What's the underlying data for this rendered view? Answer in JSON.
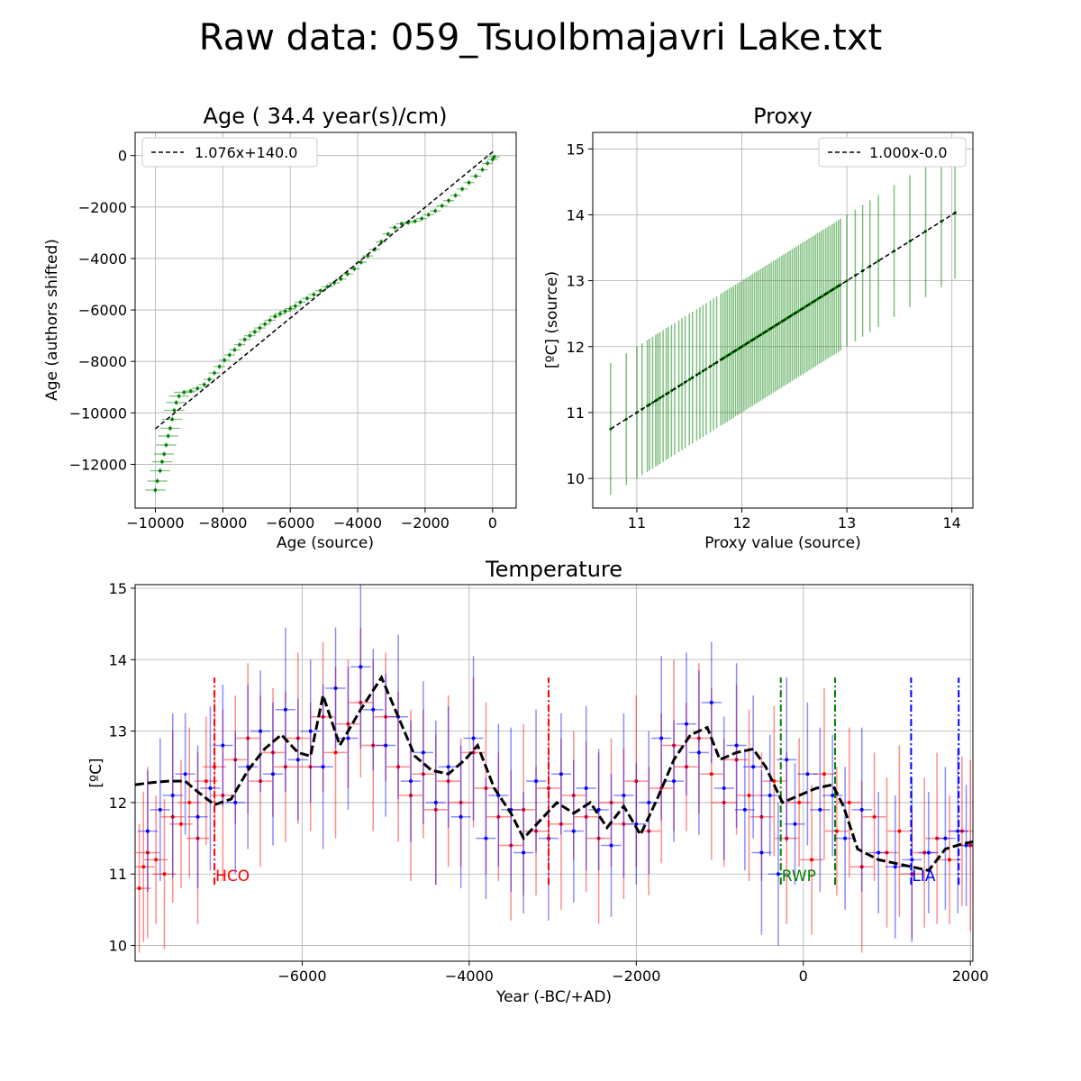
{
  "figure_title": "Raw data: 059_Tsuolbmajavri Lake.txt",
  "colors": {
    "green": "#008000",
    "red": "#ff0000",
    "blue": "#0000ff",
    "black": "#000000"
  },
  "chart_data": [
    {
      "id": "age",
      "type": "scatter",
      "title": "Age ( 34.4 year(s)/cm)",
      "xlabel": "Age (source)",
      "ylabel": "Age (authors shifted)",
      "xlim": [
        -10600,
        700
      ],
      "ylim": [
        -13700,
        900
      ],
      "xticks": [
        -10000,
        -8000,
        -6000,
        -4000,
        -2000,
        0
      ],
      "xtick_labels": [
        "−10000",
        "−8000",
        "−6000",
        "−4000",
        "−2000",
        "0"
      ],
      "yticks": [
        0,
        -2000,
        -4000,
        -6000,
        -8000,
        -10000,
        -12000
      ],
      "ytick_labels": [
        "0",
        "−2000",
        "−4000",
        "−6000",
        "−8000",
        "−10000",
        "−12000"
      ],
      "grid": true,
      "legend_position": "top-left",
      "fit": {
        "label": "1.076x+140.0",
        "slope": 1.076,
        "intercept": 140.0,
        "x_range": [
          -10000,
          50
        ]
      },
      "series_points": [
        [
          -10000,
          -13000
        ],
        [
          -9940,
          -12650
        ],
        [
          -9860,
          -12250
        ],
        [
          -9800,
          -11900
        ],
        [
          -9740,
          -11600
        ],
        [
          -9680,
          -11250
        ],
        [
          -9620,
          -10900
        ],
        [
          -9560,
          -10600
        ],
        [
          -9500,
          -10250
        ],
        [
          -9440,
          -9900
        ],
        [
          -9380,
          -9600
        ],
        [
          -9300,
          -9350
        ],
        [
          -9150,
          -9200
        ],
        [
          -8950,
          -9150
        ],
        [
          -8750,
          -9050
        ],
        [
          -8550,
          -8900
        ],
        [
          -8400,
          -8700
        ],
        [
          -8250,
          -8450
        ],
        [
          -8100,
          -8200
        ],
        [
          -7950,
          -7950
        ],
        [
          -7800,
          -7750
        ],
        [
          -7650,
          -7550
        ],
        [
          -7500,
          -7350
        ],
        [
          -7350,
          -7150
        ],
        [
          -7200,
          -7000
        ],
        [
          -7050,
          -6850
        ],
        [
          -6900,
          -6700
        ],
        [
          -6750,
          -6550
        ],
        [
          -6600,
          -6400
        ],
        [
          -6450,
          -6250
        ],
        [
          -6300,
          -6150
        ],
        [
          -6150,
          -6050
        ],
        [
          -6000,
          -5950
        ],
        [
          -5850,
          -5850
        ],
        [
          -5700,
          -5700
        ],
        [
          -5500,
          -5550
        ],
        [
          -5300,
          -5400
        ],
        [
          -5100,
          -5250
        ],
        [
          -4900,
          -5100
        ],
        [
          -4700,
          -4950
        ],
        [
          -4500,
          -4800
        ],
        [
          -4300,
          -4600
        ],
        [
          -4100,
          -4400
        ],
        [
          -3900,
          -4150
        ],
        [
          -3700,
          -3900
        ],
        [
          -3500,
          -3650
        ],
        [
          -3300,
          -3350
        ],
        [
          -3100,
          -3050
        ],
        [
          -2900,
          -2800
        ],
        [
          -2700,
          -2650
        ],
        [
          -2500,
          -2600
        ],
        [
          -2300,
          -2550
        ],
        [
          -2100,
          -2450
        ],
        [
          -1900,
          -2300
        ],
        [
          -1700,
          -2150
        ],
        [
          -1500,
          -1950
        ],
        [
          -1300,
          -1750
        ],
        [
          -1100,
          -1550
        ],
        [
          -900,
          -1300
        ],
        [
          -700,
          -1050
        ],
        [
          -500,
          -800
        ],
        [
          -300,
          -550
        ],
        [
          -150,
          -300
        ],
        [
          0,
          -150
        ],
        [
          50,
          -50
        ]
      ]
    },
    {
      "id": "proxy",
      "type": "scatter",
      "title": "Proxy",
      "xlabel": "Proxy value (source)",
      "ylabel": "[ºC] (source)",
      "xlim": [
        10.58,
        14.2
      ],
      "ylim": [
        9.55,
        15.25
      ],
      "xticks": [
        11,
        12,
        13,
        14
      ],
      "yticks": [
        10,
        11,
        12,
        13,
        14,
        15
      ],
      "grid": true,
      "legend_position": "top-right",
      "fit": {
        "label": "1.000x-0.0",
        "slope": 1.0,
        "intercept": 0.0,
        "x_range": [
          10.75,
          14.05
        ]
      },
      "error_half_width": 1.0,
      "x_values": [
        10.75,
        10.9,
        11.0,
        11.05,
        11.1,
        11.12,
        11.15,
        11.18,
        11.2,
        11.22,
        11.25,
        11.28,
        11.3,
        11.33,
        11.36,
        11.4,
        11.43,
        11.46,
        11.5,
        11.53,
        11.57,
        11.6,
        11.63,
        11.66,
        11.7,
        11.73,
        11.76,
        11.8,
        11.82,
        11.84,
        11.86,
        11.88,
        11.9,
        11.92,
        11.94,
        11.96,
        11.98,
        12.0,
        12.02,
        12.04,
        12.06,
        12.08,
        12.1,
        12.12,
        12.14,
        12.16,
        12.18,
        12.2,
        12.22,
        12.24,
        12.26,
        12.28,
        12.3,
        12.32,
        12.34,
        12.36,
        12.38,
        12.4,
        12.42,
        12.44,
        12.46,
        12.48,
        12.5,
        12.52,
        12.54,
        12.56,
        12.58,
        12.6,
        12.62,
        12.64,
        12.66,
        12.68,
        12.7,
        12.72,
        12.74,
        12.76,
        12.78,
        12.8,
        12.82,
        12.84,
        12.86,
        12.88,
        12.9,
        12.92,
        12.94,
        13.0,
        13.08,
        13.15,
        13.22,
        13.3,
        13.45,
        13.6,
        13.75,
        13.9,
        14.03
      ]
    },
    {
      "id": "temperature",
      "type": "line",
      "title": "Temperature",
      "xlabel": "Year (-BC/+AD)",
      "ylabel": "[ºC]",
      "xlim": [
        -8000,
        2030
      ],
      "ylim": [
        9.78,
        15.05
      ],
      "xticks": [
        -6000,
        -4000,
        -2000,
        0,
        2000
      ],
      "xtick_labels": [
        "−6000",
        "−4000",
        "−2000",
        "0",
        "2000"
      ],
      "yticks": [
        10,
        11,
        12,
        13,
        14,
        15
      ],
      "grid": true,
      "smoothed_line": {
        "x": [
          -8000,
          -7800,
          -7600,
          -7400,
          -7250,
          -7050,
          -6850,
          -6650,
          -6450,
          -6250,
          -6050,
          -5900,
          -5750,
          -5550,
          -5300,
          -5050,
          -4850,
          -4650,
          -4450,
          -4250,
          -4050,
          -3900,
          -3700,
          -3500,
          -3350,
          -3150,
          -2950,
          -2750,
          -2550,
          -2350,
          -2150,
          -1950,
          -1750,
          -1550,
          -1350,
          -1150,
          -1000,
          -800,
          -600,
          -450,
          -250,
          -50,
          150,
          350,
          480,
          650,
          900,
          1100,
          1300,
          1500,
          1700,
          1900,
          2030
        ],
        "y": [
          12.25,
          12.28,
          12.3,
          12.3,
          12.15,
          11.97,
          12.05,
          12.45,
          12.75,
          12.95,
          12.7,
          12.65,
          13.5,
          12.8,
          13.3,
          13.75,
          13.2,
          12.65,
          12.45,
          12.4,
          12.6,
          12.8,
          12.2,
          11.85,
          11.5,
          11.75,
          12.0,
          11.85,
          12.0,
          11.65,
          11.95,
          11.55,
          12.05,
          12.6,
          12.95,
          13.05,
          12.6,
          12.7,
          12.75,
          12.5,
          12.0,
          12.1,
          12.2,
          12.25,
          11.95,
          11.35,
          11.2,
          11.15,
          11.1,
          11.05,
          11.35,
          11.42,
          11.45
        ]
      },
      "red_points": [
        [
          -7950,
          10.8
        ],
        [
          -7900,
          11.1
        ],
        [
          -7850,
          11.3
        ],
        [
          -7750,
          11.2
        ],
        [
          -7650,
          11.0
        ],
        [
          -7550,
          11.8
        ],
        [
          -7450,
          11.7
        ],
        [
          -7350,
          12.0
        ],
        [
          -7250,
          11.5
        ],
        [
          -7150,
          12.3
        ],
        [
          -7050,
          12.5
        ],
        [
          -6950,
          12.1
        ],
        [
          -6800,
          12.6
        ],
        [
          -6650,
          12.9
        ],
        [
          -6500,
          12.3
        ],
        [
          -6350,
          12.7
        ],
        [
          -6200,
          12.5
        ],
        [
          -6050,
          12.9
        ],
        [
          -5900,
          12.5
        ],
        [
          -5750,
          13.2
        ],
        [
          -5600,
          12.7
        ],
        [
          -5450,
          13.1
        ],
        [
          -5300,
          13.4
        ],
        [
          -5150,
          12.8
        ],
        [
          -5000,
          13.2
        ],
        [
          -4850,
          12.5
        ],
        [
          -4700,
          12.1
        ],
        [
          -4550,
          12.4
        ],
        [
          -4400,
          11.9
        ],
        [
          -4250,
          12.3
        ],
        [
          -4100,
          12.0
        ],
        [
          -3950,
          12.7
        ],
        [
          -3800,
          12.2
        ],
        [
          -3650,
          11.8
        ],
        [
          -3500,
          11.4
        ],
        [
          -3350,
          11.9
        ],
        [
          -3200,
          11.6
        ],
        [
          -3050,
          12.2
        ],
        [
          -2900,
          11.7
        ],
        [
          -2750,
          12.1
        ],
        [
          -2600,
          11.8
        ],
        [
          -2450,
          11.5
        ],
        [
          -2300,
          12.0
        ],
        [
          -2150,
          11.7
        ],
        [
          -2000,
          12.3
        ],
        [
          -1850,
          11.6
        ],
        [
          -1700,
          12.2
        ],
        [
          -1550,
          12.8
        ],
        [
          -1400,
          12.5
        ],
        [
          -1250,
          12.9
        ],
        [
          -1100,
          12.4
        ],
        [
          -950,
          12.0
        ],
        [
          -800,
          12.6
        ],
        [
          -650,
          12.1
        ],
        [
          -500,
          11.8
        ],
        [
          -350,
          12.3
        ],
        [
          -200,
          11.5
        ],
        [
          -50,
          12.0
        ],
        [
          100,
          11.2
        ],
        [
          250,
          12.4
        ],
        [
          400,
          11.6
        ],
        [
          550,
          12.0
        ],
        [
          700,
          11.1
        ],
        [
          850,
          11.8
        ],
        [
          1000,
          11.3
        ],
        [
          1150,
          11.6
        ],
        [
          1300,
          11.0
        ],
        [
          1450,
          11.3
        ],
        [
          1600,
          11.5
        ],
        [
          1750,
          11.2
        ],
        [
          1900,
          11.6
        ],
        [
          2000,
          11.4
        ]
      ],
      "blue_points": [
        [
          -7850,
          11.6
        ],
        [
          -7700,
          11.9
        ],
        [
          -7550,
          12.1
        ],
        [
          -7400,
          12.4
        ],
        [
          -7250,
          11.8
        ],
        [
          -7100,
          12.2
        ],
        [
          -6950,
          12.8
        ],
        [
          -6800,
          12.0
        ],
        [
          -6650,
          12.5
        ],
        [
          -6500,
          13.0
        ],
        [
          -6350,
          12.4
        ],
        [
          -6200,
          13.3
        ],
        [
          -6050,
          12.6
        ],
        [
          -5900,
          13.0
        ],
        [
          -5750,
          12.5
        ],
        [
          -5600,
          13.6
        ],
        [
          -5450,
          12.9
        ],
        [
          -5300,
          13.9
        ],
        [
          -5150,
          13.3
        ],
        [
          -5000,
          12.8
        ],
        [
          -4850,
          13.2
        ],
        [
          -4700,
          12.3
        ],
        [
          -4550,
          12.7
        ],
        [
          -4400,
          12.0
        ],
        [
          -4250,
          12.5
        ],
        [
          -4100,
          11.8
        ],
        [
          -3950,
          12.9
        ],
        [
          -3800,
          11.5
        ],
        [
          -3650,
          12.1
        ],
        [
          -3500,
          11.9
        ],
        [
          -3350,
          11.3
        ],
        [
          -3200,
          12.3
        ],
        [
          -3050,
          11.5
        ],
        [
          -2900,
          12.4
        ],
        [
          -2750,
          11.6
        ],
        [
          -2600,
          12.2
        ],
        [
          -2450,
          11.9
        ],
        [
          -2300,
          11.4
        ],
        [
          -2150,
          12.1
        ],
        [
          -2000,
          11.7
        ],
        [
          -1850,
          12.0
        ],
        [
          -1700,
          12.9
        ],
        [
          -1550,
          12.3
        ],
        [
          -1400,
          13.1
        ],
        [
          -1250,
          12.7
        ],
        [
          -1100,
          13.4
        ],
        [
          -950,
          12.2
        ],
        [
          -800,
          12.8
        ],
        [
          -700,
          11.9
        ],
        [
          -600,
          12.5
        ],
        [
          -500,
          11.3
        ],
        [
          -400,
          12.1
        ],
        [
          -300,
          11.0
        ],
        [
          -200,
          12.6
        ],
        [
          -100,
          11.7
        ],
        [
          50,
          12.4
        ],
        [
          200,
          11.9
        ],
        [
          350,
          12.1
        ],
        [
          500,
          11.5
        ],
        [
          700,
          11.9
        ],
        [
          900,
          11.3
        ],
        [
          1100,
          11.1
        ],
        [
          1300,
          11.2
        ],
        [
          1500,
          11.3
        ],
        [
          1700,
          11.5
        ],
        [
          1850,
          11.6
        ],
        [
          1950,
          11.4
        ]
      ],
      "events": [
        {
          "label": "HCO",
          "color": "#ff0000",
          "x_start": -7050,
          "x_end": -3050
        },
        {
          "label": "RWP",
          "color": "#008000",
          "x_start": -270,
          "x_end": 380
        },
        {
          "label": "LIA",
          "color": "#0000ff",
          "x_start": 1290,
          "x_end": 1860
        }
      ],
      "event_label_y": 10.9,
      "event_line_y": [
        10.85,
        13.75
      ]
    }
  ]
}
